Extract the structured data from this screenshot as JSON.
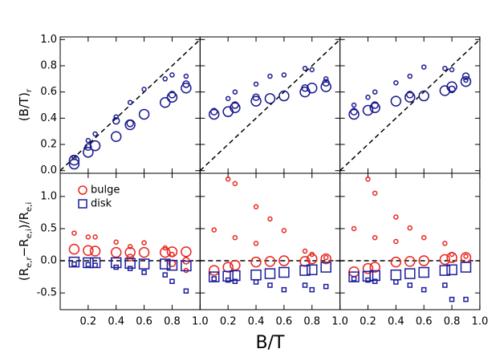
{
  "chart_data": [
    {
      "type": "scatter",
      "ylabel": [
        "(B/T)",
        "r"
      ],
      "xlim": [
        0,
        1
      ],
      "ylim": [
        -0.02,
        1.02
      ],
      "xticks": [
        0.2,
        0.4,
        0.6,
        0.8,
        {
          "value": 1,
          "label": "1.0"
        }
      ],
      "yticks": [
        {
          "value": 0,
          "label": "0.0"
        },
        0.2,
        0.4,
        0.6,
        0.8,
        {
          "value": 1,
          "label": "1.0"
        }
      ],
      "show_xticklabels": false,
      "show_yticklabels": true,
      "reference_line": "y=x",
      "series": [
        {
          "color": "#1a1a8f",
          "marker": "circle",
          "x": [
            0.1,
            0.2,
            0.25,
            0.4,
            0.5,
            0.6,
            0.75,
            0.8,
            0.9,
            0.1,
            0.1,
            0.2,
            0.25,
            0.4,
            0.5,
            0.6,
            0.75,
            0.8,
            0.9,
            0.2,
            0.4,
            0.5,
            0.8,
            0.9
          ],
          "values": [
            0.1,
            0.23,
            0.28,
            0.41,
            0.52,
            0.62,
            0.7,
            0.73,
            0.72,
            0.05,
            0.08,
            0.14,
            0.19,
            0.26,
            0.35,
            0.43,
            0.52,
            0.56,
            0.63,
            0.18,
            0.38,
            0.36,
            0.58,
            0.66
          ],
          "sizes": [
            2.5,
            2.5,
            2.5,
            2.5,
            2.5,
            2.5,
            2.5,
            2.5,
            2.5,
            6,
            6,
            6,
            6,
            6,
            6,
            6,
            6,
            6,
            6,
            4,
            4,
            4,
            4,
            4
          ]
        }
      ]
    },
    {
      "type": "scatter",
      "xlim": [
        0,
        1
      ],
      "ylim": [
        -0.02,
        1.02
      ],
      "xticks": [
        0.2,
        0.4,
        0.6,
        0.8,
        {
          "value": 1,
          "label": "1.0"
        }
      ],
      "yticks": [
        {
          "value": 0,
          "label": "0.0"
        },
        0.2,
        0.4,
        0.6,
        0.8,
        {
          "value": 1,
          "label": "1.0"
        }
      ],
      "show_xticklabels": false,
      "show_yticklabels": false,
      "reference_line": "y=x",
      "series": [
        {
          "color": "#1a1a8f",
          "marker": "circle",
          "x": [
            0.2,
            0.25,
            0.4,
            0.5,
            0.6,
            0.75,
            0.8,
            0.9,
            0.1,
            0.2,
            0.25,
            0.4,
            0.5,
            0.6,
            0.75,
            0.8,
            0.9,
            0.1,
            0.25,
            0.4,
            0.75,
            0.9
          ],
          "values": [
            0.55,
            0.6,
            0.66,
            0.72,
            0.73,
            0.78,
            0.77,
            0.7,
            0.43,
            0.45,
            0.48,
            0.53,
            0.55,
            0.57,
            0.6,
            0.63,
            0.64,
            0.45,
            0.5,
            0.56,
            0.63,
            0.67
          ],
          "sizes": [
            2.5,
            2.5,
            2.5,
            2.5,
            2.5,
            2.5,
            2.5,
            2.5,
            6,
            6,
            6,
            6,
            6,
            6,
            6,
            6,
            6,
            4,
            4,
            4,
            4,
            4
          ]
        }
      ]
    },
    {
      "type": "scatter",
      "xlim": [
        0,
        1
      ],
      "ylim": [
        -0.02,
        1.02
      ],
      "xticks": [
        0.2,
        0.4,
        0.6,
        0.8,
        {
          "value": 1,
          "label": "1.0"
        }
      ],
      "yticks": [
        {
          "value": 0,
          "label": "0.0"
        },
        0.2,
        0.4,
        0.6,
        0.8,
        {
          "value": 1,
          "label": "1.0"
        }
      ],
      "show_xticklabels": false,
      "show_yticklabels": false,
      "reference_line": "y=x",
      "series": [
        {
          "color": "#1a1a8f",
          "marker": "circle",
          "x": [
            0.1,
            0.2,
            0.25,
            0.4,
            0.5,
            0.6,
            0.75,
            0.8,
            0.9,
            0.1,
            0.2,
            0.25,
            0.4,
            0.5,
            0.6,
            0.75,
            0.8,
            0.9,
            0.1,
            0.25,
            0.5,
            0.8,
            0.9
          ],
          "values": [
            0.5,
            0.56,
            0.6,
            0.67,
            0.72,
            0.79,
            0.78,
            0.77,
            0.69,
            0.43,
            0.46,
            0.48,
            0.53,
            0.56,
            0.57,
            0.61,
            0.64,
            0.68,
            0.45,
            0.5,
            0.58,
            0.62,
            0.72
          ],
          "sizes": [
            2.5,
            2.5,
            2.5,
            2.5,
            2.5,
            2.5,
            2.5,
            2.5,
            2.5,
            6,
            6,
            6,
            6,
            6,
            6,
            6,
            6,
            6,
            4,
            4,
            4,
            4,
            4
          ]
        }
      ]
    },
    {
      "type": "scatter",
      "ylabel": [
        "(R",
        "e,r",
        "−R",
        "e,i",
        ")/R",
        "e,i"
      ],
      "xlim": [
        0,
        1
      ],
      "ylim": [
        -0.76,
        1.36
      ],
      "xticks": [
        0.2,
        0.4,
        0.6,
        0.8,
        {
          "value": 1,
          "label": "1.0"
        }
      ],
      "yticks": [
        -0.5,
        {
          "value": 0,
          "label": "0.0"
        },
        0.5,
        {
          "value": 1,
          "label": "1.0"
        }
      ],
      "show_xticklabels": true,
      "show_yticklabels": true,
      "reference_line": "y=0",
      "legend": "upper left",
      "series": [
        {
          "name": "bulge",
          "color": "#e8281e",
          "marker": "circle",
          "x": [
            0.1,
            0.2,
            0.25,
            0.4,
            0.5,
            0.6,
            0.75,
            0.8,
            0.9,
            0.1,
            0.2,
            0.25,
            0.4,
            0.5,
            0.6,
            0.75,
            0.8,
            0.9,
            0.5,
            0.8,
            0.9
          ],
          "values": [
            0.43,
            0.37,
            0.37,
            0.29,
            0.22,
            0.28,
            0.2,
            0.1,
            -0.15,
            0.18,
            0.16,
            0.15,
            0.13,
            0.13,
            0.13,
            0.13,
            0.14,
            0.14,
            0.05,
            -0.04,
            0.0
          ],
          "sizes": [
            2.5,
            2.5,
            2.5,
            2.5,
            2.5,
            2.5,
            2.5,
            2.5,
            2.5,
            6,
            6,
            6,
            6,
            6,
            6,
            6,
            6,
            6,
            4,
            4,
            4
          ]
        },
        {
          "name": "disk",
          "color": "#1c1c9c",
          "marker": "square",
          "x": [
            0.1,
            0.2,
            0.25,
            0.4,
            0.5,
            0.6,
            0.75,
            0.8,
            0.9,
            0.1,
            0.2,
            0.25,
            0.4,
            0.5,
            0.6,
            0.75,
            0.8,
            0.9
          ],
          "values": [
            -0.02,
            -0.03,
            -0.03,
            -0.03,
            -0.04,
            -0.05,
            -0.05,
            -0.07,
            -0.08,
            -0.05,
            -0.06,
            -0.07,
            -0.1,
            -0.12,
            -0.18,
            -0.22,
            -0.32,
            -0.47
          ],
          "sizes": [
            6,
            6,
            6,
            6,
            6,
            6,
            6,
            6,
            6,
            2.5,
            2.5,
            2.5,
            2.5,
            2.5,
            2.5,
            2.5,
            2.5,
            2.5
          ]
        }
      ]
    },
    {
      "type": "scatter",
      "xlabel": "B/T",
      "xlim": [
        0,
        1
      ],
      "ylim": [
        -0.76,
        1.36
      ],
      "xticks": [
        0.2,
        0.4,
        0.6,
        0.8,
        {
          "value": 1,
          "label": "1.0"
        }
      ],
      "yticks": [
        -0.5,
        {
          "value": 0,
          "label": "0.0"
        },
        0.5,
        {
          "value": 1,
          "label": "1.0"
        }
      ],
      "show_xticklabels": true,
      "show_yticklabels": false,
      "reference_line": "y=0",
      "series": [
        {
          "color": "#e8281e",
          "marker": "circle",
          "x": [
            0.1,
            0.2,
            0.25,
            0.25,
            0.4,
            0.4,
            0.5,
            0.6,
            0.75,
            0.8,
            0.9,
            0.1,
            0.2,
            0.25,
            0.4,
            0.5,
            0.6,
            0.75,
            0.8,
            0.9
          ],
          "values": [
            0.48,
            1.27,
            1.2,
            0.36,
            0.84,
            0.27,
            0.65,
            0.47,
            0.15,
            0.1,
            0.05,
            -0.15,
            -0.1,
            -0.07,
            -0.02,
            -0.01,
            0.0,
            -0.01,
            0.03,
            0.03
          ],
          "sizes": [
            2.5,
            2.5,
            2.5,
            2.5,
            2.5,
            2.5,
            2.5,
            2.5,
            2.5,
            2.5,
            2.5,
            6,
            6,
            6,
            6,
            6,
            6,
            6,
            6,
            6
          ]
        },
        {
          "color": "#1c1c9c",
          "marker": "square",
          "x": [
            0.1,
            0.2,
            0.25,
            0.4,
            0.5,
            0.6,
            0.75,
            0.8,
            0.9,
            0.1,
            0.2,
            0.25,
            0.4,
            0.5,
            0.6,
            0.75,
            0.8,
            0.9
          ],
          "values": [
            -0.25,
            -0.24,
            -0.23,
            -0.22,
            -0.2,
            -0.18,
            -0.15,
            -0.14,
            -0.1,
            -0.28,
            -0.3,
            -0.32,
            -0.33,
            -0.38,
            -0.45,
            -0.38,
            -0.45,
            -0.4
          ],
          "sizes": [
            6,
            6,
            6,
            6,
            6,
            6,
            6,
            6,
            6,
            2.5,
            2.5,
            2.5,
            2.5,
            2.5,
            2.5,
            2.5,
            2.5,
            2.5
          ]
        }
      ]
    },
    {
      "type": "scatter",
      "xlim": [
        0,
        1
      ],
      "ylim": [
        -0.76,
        1.36
      ],
      "xticks": [
        0.2,
        0.4,
        0.6,
        0.8,
        {
          "value": 1,
          "label": "1.0"
        }
      ],
      "yticks": [
        -0.5,
        {
          "value": 0,
          "label": "0.0"
        },
        0.5,
        {
          "value": 1,
          "label": "1.0"
        }
      ],
      "show_xticklabels": true,
      "show_yticklabels": false,
      "reference_line": "y=0",
      "series": [
        {
          "color": "#e8281e",
          "marker": "circle",
          "x": [
            0.1,
            0.2,
            0.25,
            0.25,
            0.4,
            0.4,
            0.5,
            0.6,
            0.75,
            0.8,
            0.9,
            0.1,
            0.2,
            0.25,
            0.4,
            0.5,
            0.6,
            0.75,
            0.8,
            0.9
          ],
          "values": [
            0.5,
            1.27,
            1.05,
            0.36,
            0.68,
            0.3,
            0.51,
            0.36,
            0.27,
            0.1,
            0.07,
            -0.17,
            -0.12,
            -0.1,
            -0.02,
            -0.01,
            0.0,
            0.02,
            0.05,
            0.05
          ],
          "sizes": [
            2.5,
            2.5,
            2.5,
            2.5,
            2.5,
            2.5,
            2.5,
            2.5,
            2.5,
            2.5,
            2.5,
            6,
            6,
            6,
            6,
            6,
            6,
            6,
            6,
            6
          ]
        },
        {
          "color": "#1c1c9c",
          "marker": "square",
          "x": [
            0.1,
            0.2,
            0.25,
            0.4,
            0.5,
            0.6,
            0.75,
            0.8,
            0.9,
            0.1,
            0.2,
            0.25,
            0.4,
            0.5,
            0.6,
            0.75,
            0.8,
            0.9
          ],
          "values": [
            -0.25,
            -0.24,
            -0.23,
            -0.22,
            -0.2,
            -0.18,
            -0.15,
            -0.14,
            -0.1,
            -0.28,
            -0.3,
            -0.32,
            -0.33,
            -0.38,
            -0.45,
            -0.38,
            -0.6,
            -0.6
          ],
          "sizes": [
            6,
            6,
            6,
            6,
            6,
            6,
            6,
            6,
            6,
            2.5,
            2.5,
            2.5,
            2.5,
            2.5,
            2.5,
            2.5,
            2.5,
            2.5
          ]
        }
      ]
    }
  ]
}
